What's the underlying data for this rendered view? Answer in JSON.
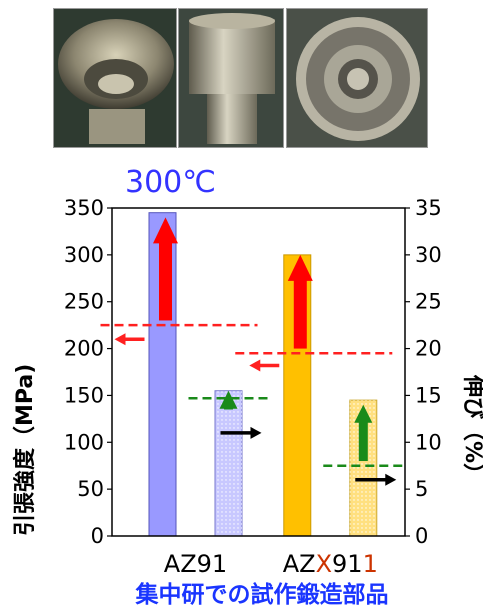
{
  "photos": [
    {
      "name": "forged-part-oblique-view"
    },
    {
      "name": "forged-part-side-view"
    },
    {
      "name": "forged-part-top-view"
    }
  ],
  "chart_data": {
    "type": "bar",
    "title": "300℃",
    "ylabel_left": "引張強度（MPa)",
    "ylabel_right": "伸び（%）",
    "ylim_left": [
      0,
      350
    ],
    "ylim_right": [
      0,
      35
    ],
    "yticks_left": [
      "0",
      "50",
      "100",
      "150",
      "200",
      "250",
      "300",
      "350"
    ],
    "yticks_right": [
      "0",
      "5",
      "10",
      "15",
      "20",
      "25",
      "30",
      "35"
    ],
    "groups": [
      {
        "label_parts": [
          {
            "text": "AZ91",
            "color": "#000000"
          }
        ]
      },
      {
        "label_parts": [
          {
            "text": "AZ",
            "color": "#000000"
          },
          {
            "text": "X",
            "color": "#cc3300"
          },
          {
            "text": "91",
            "color": "#000000"
          },
          {
            "text": "1",
            "color": "#cc3300"
          }
        ]
      }
    ],
    "bars": [
      {
        "group": 0,
        "axis": "left",
        "value": 345,
        "fill": "#9999ff",
        "stroke": "#5555bb",
        "pattern": "solid"
      },
      {
        "group": 0,
        "axis": "right",
        "value": 15.5,
        "fill": "#c8c8ff",
        "stroke": "#7777cc",
        "pattern": "dots"
      },
      {
        "group": 1,
        "axis": "left",
        "value": 300,
        "fill": "#ffc000",
        "stroke": "#cc9900",
        "pattern": "solid"
      },
      {
        "group": 1,
        "axis": "right",
        "value": 14.5,
        "fill": "#ffe080",
        "stroke": "#ccaa33",
        "pattern": "dots"
      }
    ],
    "reference_lines": [
      {
        "group": 0,
        "axis": "left",
        "value": 225,
        "color": "#ff2020"
      },
      {
        "group": 0,
        "axis": "right",
        "value": 14.7,
        "color": "#1a8a1a"
      },
      {
        "group": 1,
        "axis": "left",
        "value": 195,
        "color": "#ff2020"
      },
      {
        "group": 1,
        "axis": "right",
        "value": 7.5,
        "color": "#1a8a1a"
      }
    ],
    "axis_arrows": [
      {
        "group": 0,
        "axis": "left",
        "value": 210,
        "color": "#ff2020"
      },
      {
        "group": 0,
        "axis": "right",
        "value": 11,
        "color": "#000000"
      },
      {
        "group": 1,
        "axis": "left",
        "value": 182,
        "color": "#ff2020"
      },
      {
        "group": 1,
        "axis": "right",
        "value": 6,
        "color": "#000000"
      }
    ],
    "improvement_arrows": [
      {
        "group": 0,
        "axis": "left",
        "from": 230,
        "to": 340,
        "color": "#ff0000"
      },
      {
        "group": 0,
        "axis": "right",
        "from": 13.5,
        "to": 15.5,
        "color": "#1a8a1a"
      },
      {
        "group": 1,
        "axis": "left",
        "from": 200,
        "to": 300,
        "color": "#ff0000"
      },
      {
        "group": 1,
        "axis": "right",
        "from": 8,
        "to": 14,
        "color": "#1a8a1a"
      }
    ],
    "grid": false,
    "caption": "集中研での試作鍛造部品"
  },
  "colors": {
    "title": "#3333ff",
    "caption": "#1a35ff"
  }
}
